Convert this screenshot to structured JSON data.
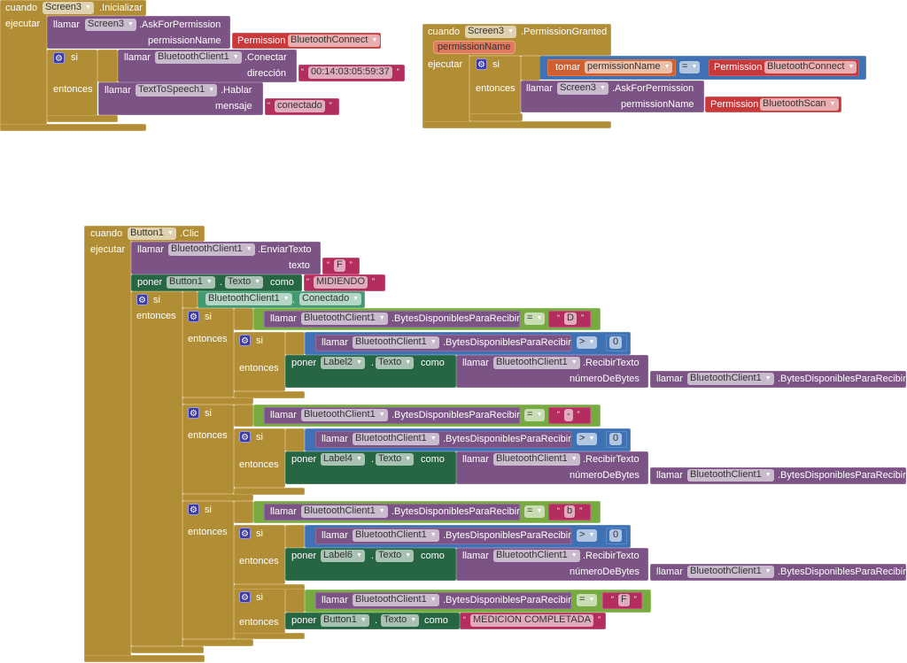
{
  "labels": {
    "cuando": "cuando",
    "ejecutar": "ejecutar",
    "llamar": "llamar",
    "si": "si",
    "entonces": "entonces",
    "poner": "poner",
    "como": "como",
    "tomar": "tomar",
    "permission": "Permission",
    "dot": ".",
    "eq": "=",
    "gt": ">",
    "zero": "0"
  },
  "init": {
    "component": "Screen3",
    "event": ".Inicializar",
    "ask_component": "Screen3",
    "ask_method": ".AskForPermission",
    "ask_arg": "permissionName",
    "ask_value": "BluetoothConnect",
    "connect_component": "BluetoothClient1",
    "connect_method": ".Conectar",
    "connect_arg": "dirección",
    "connect_value": "00:14:03:05:59:37",
    "speak_component": "TextToSpeech1",
    "speak_method": ".Hablar",
    "speak_arg": "mensaje",
    "speak_value": "conectado"
  },
  "granted": {
    "component": "Screen3",
    "event": ".PermissionGranted",
    "param": "permissionName",
    "var": "permissionName",
    "cmp_value": "BluetoothConnect",
    "ask_component": "Screen3",
    "ask_method": ".AskForPermission",
    "ask_arg": "permissionName",
    "ask_value": "BluetoothScan"
  },
  "click": {
    "component": "Button1",
    "event": ".Clic",
    "send_component": "BluetoothClient1",
    "send_method": ".EnviarTexto",
    "send_arg": "texto",
    "send_value": "F",
    "set_component": "Button1",
    "set_prop": "Texto",
    "set_value": "MIDIENDO",
    "cond_component": "BluetoothClient1",
    "cond_prop": "Conectado",
    "bt": "BluetoothClient1",
    "bytes_method": ".BytesDisponiblesParaRecibir",
    "recv_method": ".RecibirTexto",
    "recv_arg": "númeroDeBytes",
    "prop": "Texto",
    "groups": [
      {
        "char": "D",
        "label": "Label2"
      },
      {
        "char": "-",
        "label": "Label4"
      },
      {
        "char": "b",
        "label": "Label6"
      }
    ],
    "final_char": "F",
    "final_component": "Button1",
    "final_value": "MEDICION COMPLETADA"
  }
}
